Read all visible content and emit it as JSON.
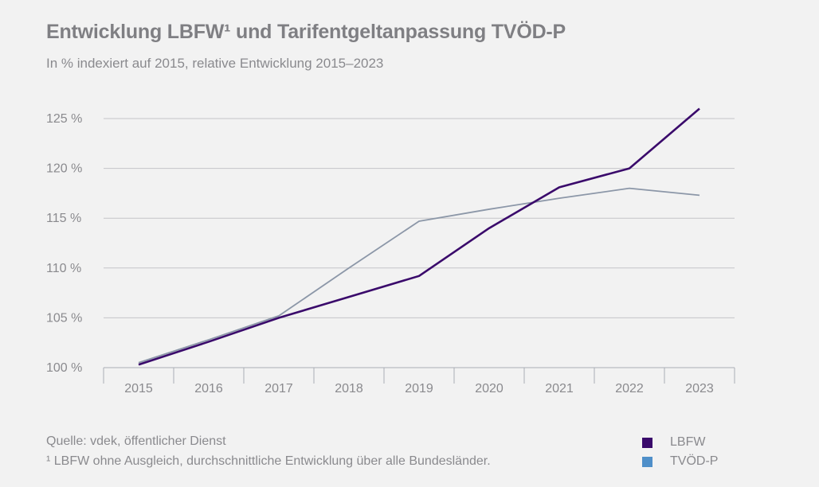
{
  "title": "Entwicklung LBFW¹ und Tarifentgeltanpassung TVÖD-P",
  "subtitle": "In % indexiert auf 2015, relative Entwicklung 2015–2023",
  "source": "Quelle: vdek, öffentlicher Dienst",
  "footnote": "¹ LBFW ohne Ausgleich, durchschnittliche Entwicklung über alle Bundesländer.",
  "legend": [
    {
      "label": "LBFW",
      "color": "#3a0a6b"
    },
    {
      "label": "TVÖD-P",
      "color": "#4f8fc9"
    }
  ],
  "chart_data": {
    "type": "line",
    "title": "Entwicklung LBFW¹ und Tarifentgeltanpassung TVÖD-P",
    "subtitle": "In % indexiert auf 2015, relative Entwicklung 2015–2023",
    "categories": [
      "2015",
      "2016",
      "2017",
      "2018",
      "2019",
      "2020",
      "2021",
      "2022",
      "2023"
    ],
    "ylim": [
      100,
      125
    ],
    "yticks": [
      100,
      105,
      110,
      115,
      120,
      125
    ],
    "ytick_labels": [
      "100 %",
      "105 %",
      "110 %",
      "115 %",
      "120 %",
      "125 %"
    ],
    "grid": true,
    "legend_position": "bottom-right",
    "series": [
      {
        "name": "LBFW",
        "color": "#3a0a6b",
        "values": [
          100.3,
          102.6,
          105.0,
          107.1,
          109.2,
          114.0,
          118.1,
          120.0,
          126.0
        ]
      },
      {
        "name": "TVÖD-P",
        "color": "#8c97a8",
        "values": [
          100.5,
          102.8,
          105.2,
          110.0,
          114.7,
          115.9,
          117.0,
          118.0,
          117.3
        ]
      }
    ]
  }
}
